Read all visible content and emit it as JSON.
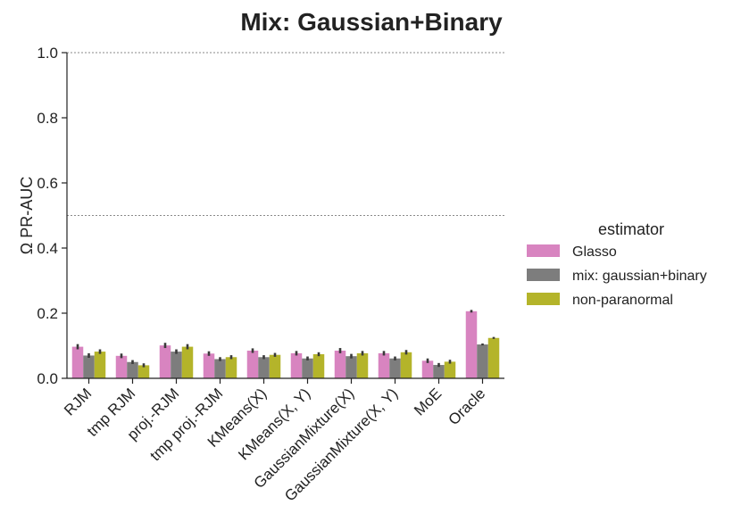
{
  "chart_data": {
    "type": "bar",
    "title": "Mix: Gaussian+Binary",
    "xlabel": "",
    "ylabel": "Ω PR-AUC",
    "ylim": [
      0,
      1.0
    ],
    "yticks": [
      "0.0",
      "0.2",
      "0.4",
      "0.6",
      "0.8",
      "1.0"
    ],
    "reference_lines": [
      1.0,
      0.5
    ],
    "grid": false,
    "legend_title": "estimator",
    "legend_position": "right",
    "categories": [
      "RJM",
      "tmp RJM",
      "proj.-RJM",
      "tmp proj.-RJM",
      "KMeans(X)",
      "KMeans(X, Y)",
      "GaussianMixture(X)",
      "GaussianMixture(X, Y)",
      "MoE",
      "Oracle"
    ],
    "series": [
      {
        "name": "Glasso",
        "color": "#d884c0",
        "values": [
          0.097,
          0.069,
          0.101,
          0.076,
          0.085,
          0.077,
          0.085,
          0.077,
          0.054,
          0.206
        ],
        "errors": [
          0.008,
          0.007,
          0.008,
          0.007,
          0.007,
          0.007,
          0.008,
          0.007,
          0.007,
          0.004
        ]
      },
      {
        "name": "mix: gaussian+binary",
        "color": "#7d7d7d",
        "values": [
          0.07,
          0.05,
          0.082,
          0.059,
          0.065,
          0.061,
          0.068,
          0.061,
          0.041,
          0.104
        ],
        "errors": [
          0.007,
          0.006,
          0.007,
          0.006,
          0.006,
          0.006,
          0.007,
          0.006,
          0.006,
          0.003
        ]
      },
      {
        "name": "non-paranormal",
        "color": "#b4b42a",
        "values": [
          0.082,
          0.04,
          0.097,
          0.065,
          0.072,
          0.074,
          0.077,
          0.08,
          0.051,
          0.124
        ],
        "errors": [
          0.007,
          0.006,
          0.008,
          0.006,
          0.006,
          0.006,
          0.007,
          0.007,
          0.006,
          0.003
        ]
      }
    ]
  }
}
